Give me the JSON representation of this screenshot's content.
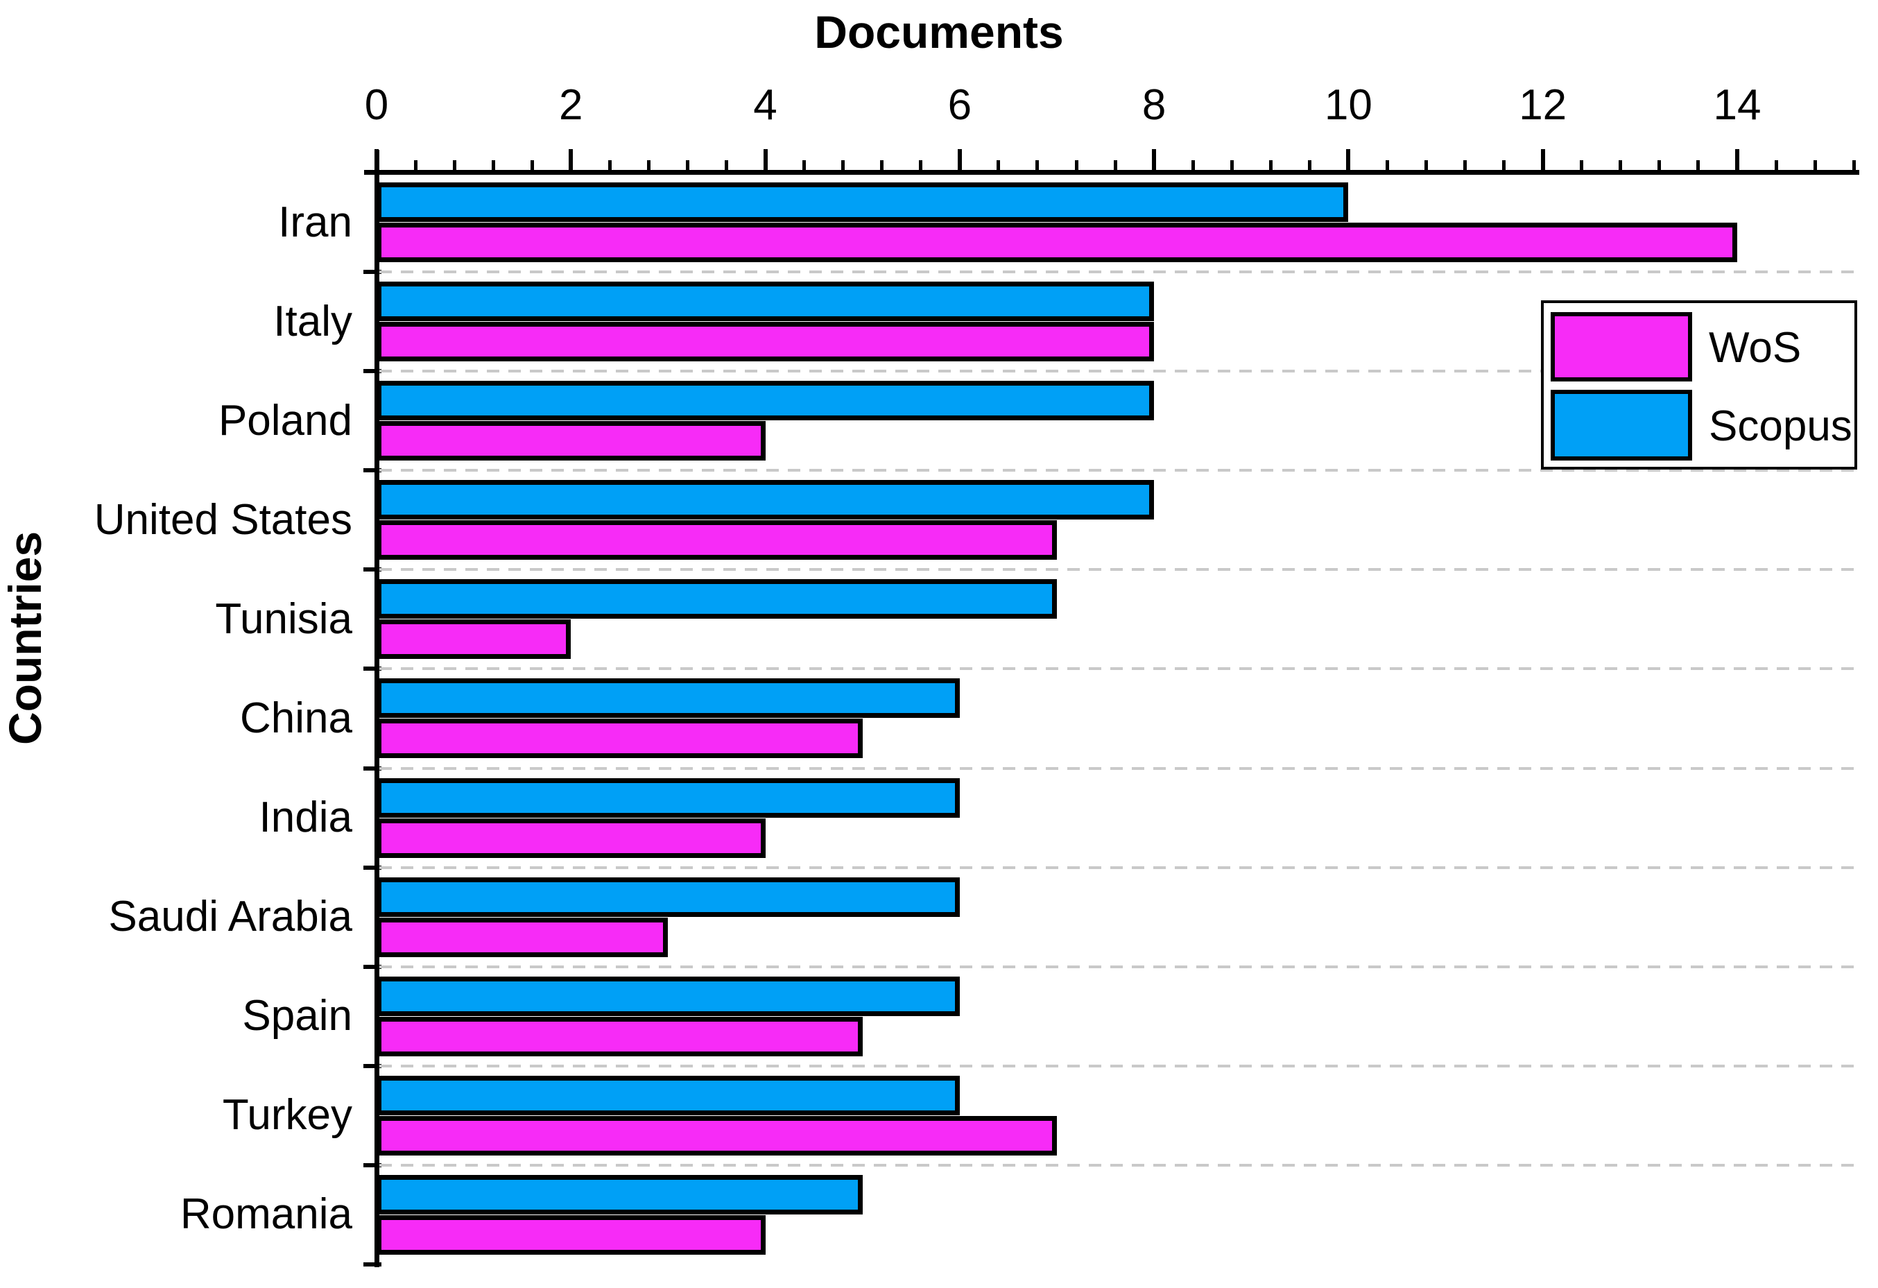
{
  "chart_data": {
    "type": "bar",
    "orientation": "horizontal",
    "title": "",
    "xlabel": "Documents",
    "ylabel": "Countries",
    "categories": [
      "Iran",
      "Italy",
      "Poland",
      "United States",
      "Tunisia",
      "China",
      "India",
      "Saudi Arabia",
      "Spain",
      "Turkey",
      "Romania"
    ],
    "series": [
      {
        "name": "WoS",
        "color": "#f72bf7",
        "values": [
          14,
          8,
          4,
          7,
          2,
          5,
          4,
          3,
          5,
          7,
          4
        ]
      },
      {
        "name": "Scopus",
        "color": "#00a0f6",
        "values": [
          10,
          8,
          8,
          8,
          7,
          6,
          6,
          6,
          6,
          6,
          5
        ]
      }
    ],
    "row_order": [
      "Scopus",
      "WoS"
    ],
    "xlim": [
      0,
      15.2
    ],
    "x_major_ticks": [
      0,
      2,
      4,
      6,
      8,
      10,
      12,
      14
    ],
    "x_minor_step": 0.4,
    "grid": "category-boundaries-dashed",
    "gridline_color": "#c9c9c9",
    "axis_color": "#000000",
    "bar_border_color": "#000000",
    "legend_position": "upper-right",
    "legend_entries": [
      "WoS",
      "Scopus"
    ]
  }
}
